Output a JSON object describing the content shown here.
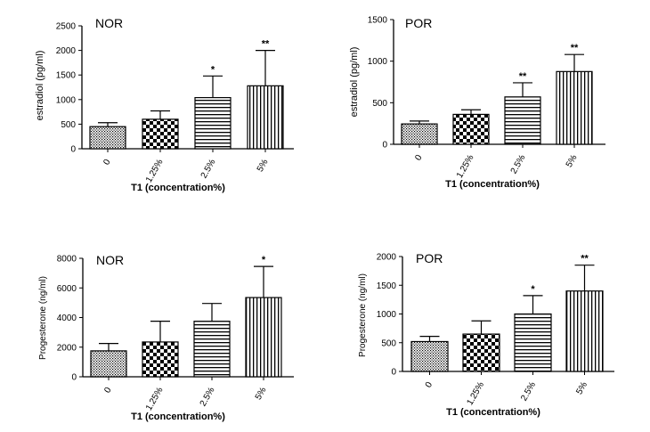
{
  "figure": {
    "xlabel": "T1 (concentration%)",
    "categories": [
      "0",
      "1.25%",
      "2.5%",
      "5%"
    ]
  },
  "chart_data": [
    {
      "type": "bar",
      "title": "NOR",
      "ylabel": "estradiol (pg/ml)",
      "xlabel": "T1 (concentration%)",
      "categories": [
        "0",
        "1.25%",
        "2.5%",
        "5%"
      ],
      "values": [
        450,
        600,
        1040,
        1280
      ],
      "errors": [
        80,
        170,
        440,
        720
      ],
      "significance": [
        "",
        "",
        "*",
        "**"
      ],
      "ylim": [
        0,
        2500
      ],
      "yticks": [
        0,
        500,
        1000,
        1500,
        2000,
        2500
      ]
    },
    {
      "type": "bar",
      "title": "POR",
      "ylabel": "estradiol (pg/ml)",
      "xlabel": "T1 (concentration%)",
      "categories": [
        "0",
        "1.25%",
        "2.5%",
        "5%"
      ],
      "values": [
        245,
        360,
        570,
        875
      ],
      "errors": [
        35,
        55,
        170,
        205
      ],
      "significance": [
        "",
        "",
        "**",
        "**"
      ],
      "ylim": [
        0,
        1500
      ],
      "yticks": [
        0,
        500,
        1000,
        1500
      ]
    },
    {
      "type": "bar",
      "title": "NOR",
      "ylabel": "Progesterone (ng/ml)",
      "xlabel": "T1 (concentration%)",
      "categories": [
        "0",
        "1.25%",
        "2.5%",
        "5%"
      ],
      "values": [
        1750,
        2350,
        3750,
        5350
      ],
      "errors": [
        500,
        1400,
        1200,
        2100
      ],
      "significance": [
        "",
        "",
        "",
        "*"
      ],
      "ylim": [
        0,
        8000
      ],
      "yticks": [
        0,
        2000,
        4000,
        6000,
        8000
      ]
    },
    {
      "type": "bar",
      "title": "POR",
      "ylabel": "Progesterone (ng/ml)",
      "xlabel": "T1 (concentration%)",
      "categories": [
        "0",
        "1.25%",
        "2.5%",
        "5%"
      ],
      "values": [
        520,
        650,
        1000,
        1400
      ],
      "errors": [
        90,
        230,
        320,
        450
      ],
      "significance": [
        "",
        "",
        "*",
        "**"
      ],
      "ylim": [
        0,
        2000
      ],
      "yticks": [
        0,
        500,
        1000,
        1500,
        2000
      ]
    }
  ]
}
